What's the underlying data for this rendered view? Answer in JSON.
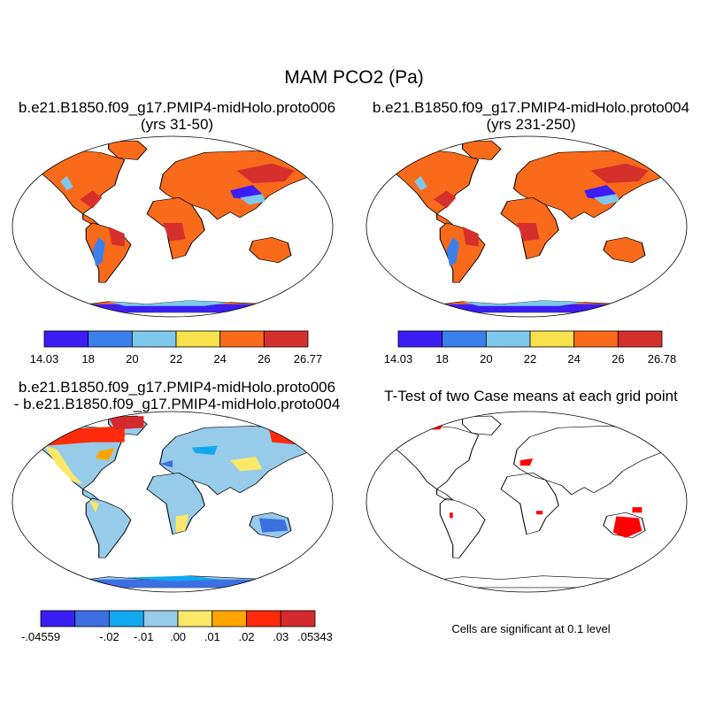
{
  "figure": {
    "title": "MAM PCO2 (Pa)",
    "colors": {
      "land_outline": "#000000",
      "ocean": "#ffffff"
    }
  },
  "panels": [
    {
      "id": "case1",
      "title_lines": [
        "b.e21.B1850.f09_g17.PMIP4-midHolo.proto006",
        "(yrs 31-50)"
      ],
      "colorbar": {
        "labels": [
          "14.03",
          "18",
          "20",
          "22",
          "24",
          "26",
          "26.77"
        ],
        "colors": [
          "#3c1ef5",
          "#3c80ec",
          "#7ec8ec",
          "#f9e14b",
          "#f96a1b",
          "#d6302d"
        ]
      }
    },
    {
      "id": "case2",
      "title_lines": [
        "b.e21.B1850.f09_g17.PMIP4-midHolo.proto004",
        "(yrs 231-250)"
      ],
      "colorbar": {
        "labels": [
          "14.03",
          "18",
          "20",
          "22",
          "24",
          "26",
          "26.78"
        ],
        "colors": [
          "#3c1ef5",
          "#3c80ec",
          "#7ec8ec",
          "#f9e14b",
          "#f96a1b",
          "#d6302d"
        ]
      }
    },
    {
      "id": "difference",
      "title_lines": [
        "b.e21.B1850.f09_g17.PMIP4-midHolo.proto006",
        "- b.e21.B1850.f09_g17.PMIP4-midHolo.proto004"
      ],
      "colorbar": {
        "labels": [
          "-.04559",
          "",
          "-.02",
          "-.01",
          ".00",
          ".01",
          ".02",
          ".03",
          ".05343"
        ],
        "colors": [
          "#3b1ef3",
          "#3c6fe2",
          "#12a8f0",
          "#96cbe9",
          "#fbe868",
          "#ffa500",
          "#ff2a0a",
          "#d42a2e"
        ]
      }
    },
    {
      "id": "ttest",
      "title_lines": [
        "T-Test of two Case means at each grid point"
      ],
      "note": "Cells are significant at 0.1 level",
      "significant_color": "#ff0000"
    }
  ]
}
